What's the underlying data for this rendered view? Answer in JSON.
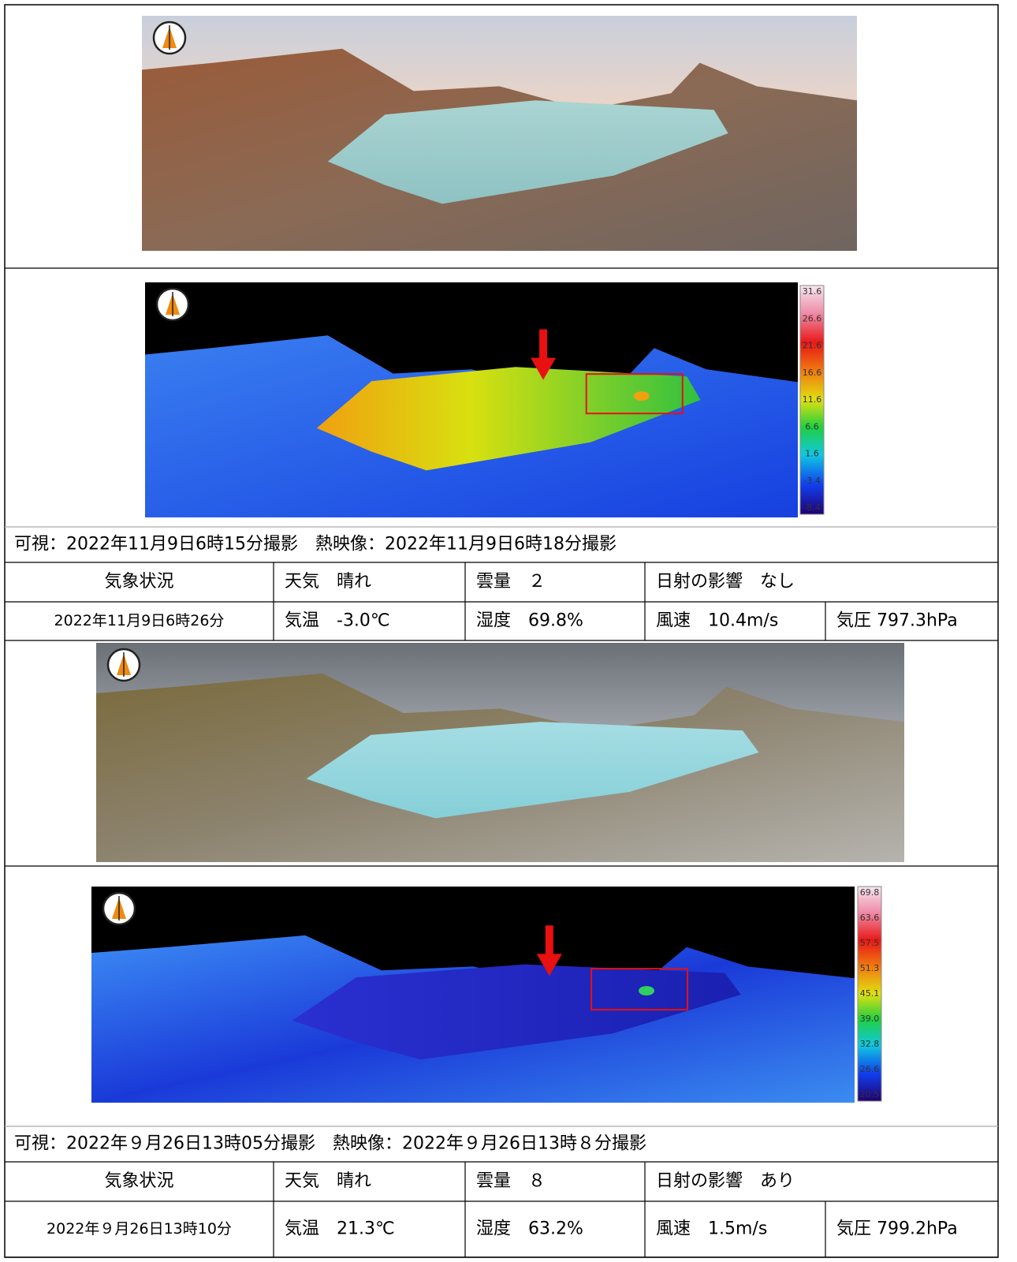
{
  "observations": [
    {
      "caption": "可視：2022年11月9日6時15分撮影　熱映像：2022年11月9日6時18分撮影",
      "thermal_scale": [
        "31.6",
        "26.6",
        "21.6",
        "16.6",
        "11.6",
        "6.6",
        "1.6",
        "-3.4",
        "-8.4"
      ],
      "weather": {
        "heading": "気象状況",
        "datetime": "2022年11月9日6時26分",
        "weather": "天気　晴れ",
        "cloud": "雲量　２",
        "solar": "日射の影響　なし",
        "temperature": "気温　-3.0℃",
        "humidity": "湿度　69.8%",
        "wind": "風速　10.4m/s",
        "pressure": "気圧 797.3hPa"
      }
    },
    {
      "caption": "可視：2022年９月26日13時05分撮影　熱映像：2022年９月26日13時８分撮影",
      "thermal_scale": [
        "69.8",
        "63.6",
        "57.5",
        "51.3",
        "45.1",
        "39.0",
        "32.8",
        "26.6",
        "20.5"
      ],
      "weather": {
        "heading": "気象状況",
        "datetime": "2022年９月26日13時10分",
        "weather": "天気　晴れ",
        "cloud": "雲量　８",
        "solar": "日射の影響　あり",
        "temperature": "気温　21.3℃",
        "humidity": "湿度　63.2%",
        "wind": "風速　1.5m/s",
        "pressure": "気圧 799.2hPa"
      }
    }
  ]
}
